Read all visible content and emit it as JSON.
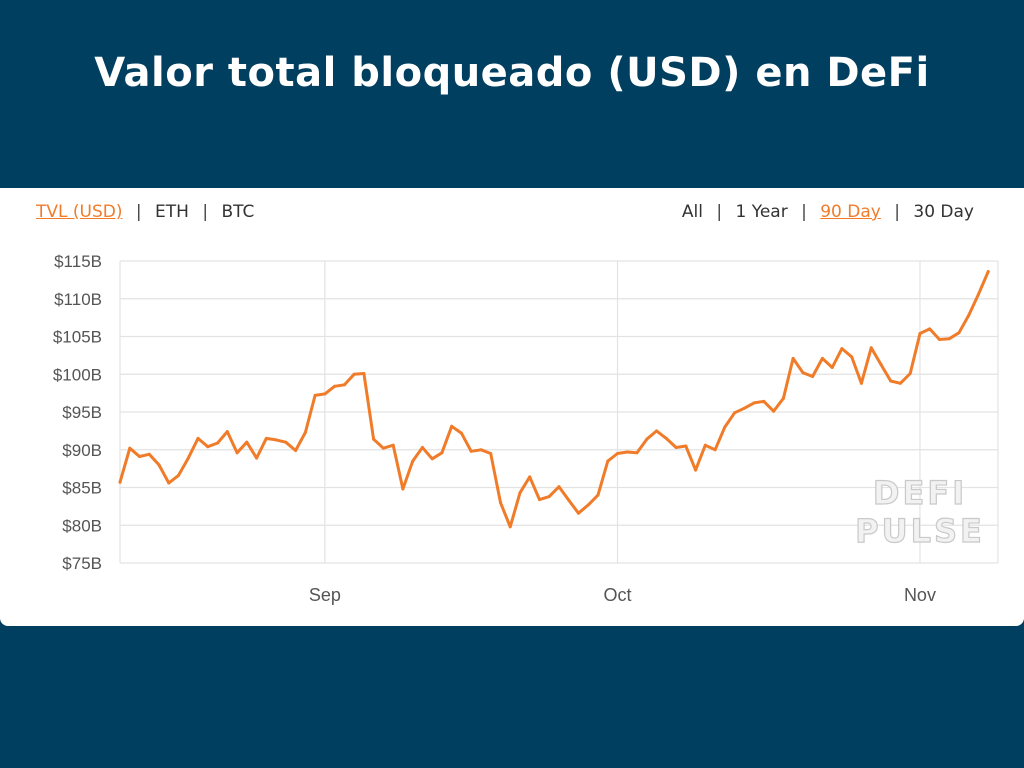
{
  "slide": {
    "title": "Valor total bloqueado (USD) en DeFi",
    "background": "#003f5f"
  },
  "toolbar": {
    "metric_options": [
      {
        "label": "TVL (USD)",
        "active": true
      },
      {
        "label": "ETH",
        "active": false
      },
      {
        "label": "BTC",
        "active": false
      }
    ],
    "range_options": [
      {
        "label": "All",
        "active": false
      },
      {
        "label": "1 Year",
        "active": false
      },
      {
        "label": "90 Day",
        "active": true
      },
      {
        "label": "30 Day",
        "active": false
      }
    ],
    "separator": "|"
  },
  "watermark": {
    "line1": "DEFI",
    "line2": "PULSE"
  },
  "chart_data": {
    "type": "line",
    "title": "",
    "xlabel": "",
    "ylabel": "",
    "ylim": [
      75,
      115
    ],
    "yticks": [
      75,
      80,
      85,
      90,
      95,
      100,
      105,
      110,
      115
    ],
    "ytick_labels": [
      "$75B",
      "$80B",
      "$85B",
      "$90B",
      "$95B",
      "$100B",
      "$105B",
      "$110B",
      "$115B"
    ],
    "x_range": [
      "2020-08-11",
      "2020-11-09"
    ],
    "xticks": [
      {
        "date": "2020-09-01",
        "label": "Sep"
      },
      {
        "date": "2020-10-01",
        "label": "Oct"
      },
      {
        "date": "2020-11-01",
        "label": "Nov"
      }
    ],
    "grid": true,
    "line_color": "#f07c2a",
    "series": [
      {
        "name": "TVL (USD)",
        "unit": "B USD",
        "points": [
          [
            "2020-08-11",
            85.7
          ],
          [
            "2020-08-12",
            90.2
          ],
          [
            "2020-08-13",
            89.1
          ],
          [
            "2020-08-14",
            89.4
          ],
          [
            "2020-08-15",
            88.0
          ],
          [
            "2020-08-16",
            85.6
          ],
          [
            "2020-08-17",
            86.6
          ],
          [
            "2020-08-18",
            88.9
          ],
          [
            "2020-08-19",
            91.5
          ],
          [
            "2020-08-20",
            90.4
          ],
          [
            "2020-08-21",
            90.9
          ],
          [
            "2020-08-22",
            92.4
          ],
          [
            "2020-08-23",
            89.6
          ],
          [
            "2020-08-24",
            91.0
          ],
          [
            "2020-08-25",
            88.9
          ],
          [
            "2020-08-26",
            91.5
          ],
          [
            "2020-08-27",
            91.3
          ],
          [
            "2020-08-28",
            91.0
          ],
          [
            "2020-08-29",
            89.9
          ],
          [
            "2020-08-30",
            92.3
          ],
          [
            "2020-08-31",
            97.2
          ],
          [
            "2020-09-01",
            97.4
          ],
          [
            "2020-09-02",
            98.4
          ],
          [
            "2020-09-03",
            98.6
          ],
          [
            "2020-09-04",
            100.0
          ],
          [
            "2020-09-05",
            100.1
          ],
          [
            "2020-09-06",
            91.4
          ],
          [
            "2020-09-07",
            90.2
          ],
          [
            "2020-09-08",
            90.6
          ],
          [
            "2020-09-09",
            84.8
          ],
          [
            "2020-09-10",
            88.5
          ],
          [
            "2020-09-11",
            90.3
          ],
          [
            "2020-09-12",
            88.8
          ],
          [
            "2020-09-13",
            89.6
          ],
          [
            "2020-09-14",
            93.1
          ],
          [
            "2020-09-15",
            92.2
          ],
          [
            "2020-09-16",
            89.8
          ],
          [
            "2020-09-17",
            90.0
          ],
          [
            "2020-09-18",
            89.5
          ],
          [
            "2020-09-19",
            83.0
          ],
          [
            "2020-09-20",
            79.8
          ],
          [
            "2020-09-21",
            84.3
          ],
          [
            "2020-09-22",
            86.4
          ],
          [
            "2020-09-23",
            83.4
          ],
          [
            "2020-09-24",
            83.8
          ],
          [
            "2020-09-25",
            85.1
          ],
          [
            "2020-09-26",
            83.3
          ],
          [
            "2020-09-27",
            81.6
          ],
          [
            "2020-09-28",
            82.7
          ],
          [
            "2020-09-29",
            84.0
          ],
          [
            "2020-09-30",
            88.5
          ],
          [
            "2020-10-01",
            89.5
          ],
          [
            "2020-10-02",
            89.7
          ],
          [
            "2020-10-03",
            89.6
          ],
          [
            "2020-10-04",
            91.4
          ],
          [
            "2020-10-05",
            92.5
          ],
          [
            "2020-10-06",
            91.5
          ],
          [
            "2020-10-07",
            90.3
          ],
          [
            "2020-10-08",
            90.5
          ],
          [
            "2020-10-09",
            87.3
          ],
          [
            "2020-10-10",
            90.6
          ],
          [
            "2020-10-11",
            90.0
          ],
          [
            "2020-10-12",
            93.0
          ],
          [
            "2020-10-13",
            94.9
          ],
          [
            "2020-10-14",
            95.5
          ],
          [
            "2020-10-15",
            96.2
          ],
          [
            "2020-10-16",
            96.4
          ],
          [
            "2020-10-17",
            95.1
          ],
          [
            "2020-10-18",
            96.8
          ],
          [
            "2020-10-19",
            102.1
          ],
          [
            "2020-10-20",
            100.2
          ],
          [
            "2020-10-21",
            99.7
          ],
          [
            "2020-10-22",
            102.1
          ],
          [
            "2020-10-23",
            100.9
          ],
          [
            "2020-10-24",
            103.4
          ],
          [
            "2020-10-25",
            102.3
          ],
          [
            "2020-10-26",
            98.8
          ],
          [
            "2020-10-27",
            103.5
          ],
          [
            "2020-10-28",
            101.3
          ],
          [
            "2020-10-29",
            99.1
          ],
          [
            "2020-10-30",
            98.8
          ],
          [
            "2020-10-31",
            100.1
          ],
          [
            "2020-11-01",
            105.4
          ],
          [
            "2020-11-02",
            106.0
          ],
          [
            "2020-11-03",
            104.6
          ],
          [
            "2020-11-04",
            104.7
          ],
          [
            "2020-11-05",
            105.5
          ],
          [
            "2020-11-06",
            107.8
          ],
          [
            "2020-11-07",
            110.6
          ],
          [
            "2020-11-08",
            113.6
          ]
        ]
      }
    ]
  }
}
